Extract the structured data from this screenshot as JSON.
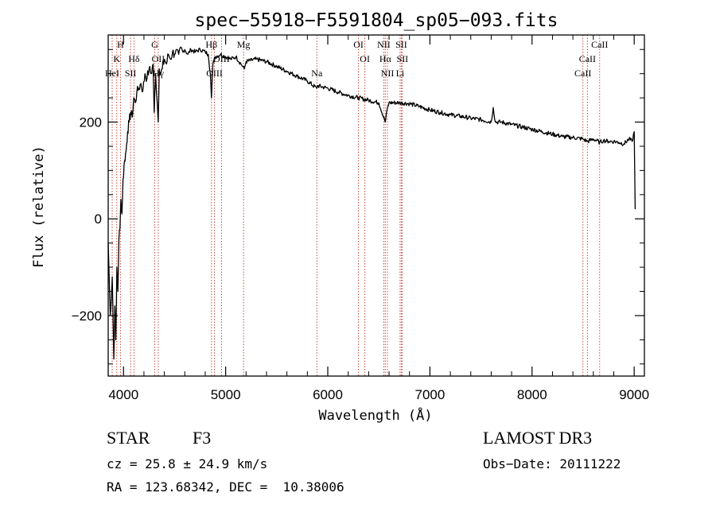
{
  "chart_data": {
    "type": "line",
    "title": "spec−55918−F5591804_sp05−093.fits",
    "xlabel": "Wavelength (Å)",
    "ylabel": "Flux (relative)",
    "xlim": [
      3850,
      9100
    ],
    "ylim": [
      -325,
      380
    ],
    "x_ticks": [
      4000,
      5000,
      6000,
      7000,
      8000,
      9000
    ],
    "x_tick_labels": [
      "4000",
      "5000",
      "6000",
      "7000",
      "8000",
      "9000"
    ],
    "y_ticks": [
      -200,
      0,
      200
    ],
    "y_tick_labels": [
      "−200",
      "0",
      "200"
    ],
    "grid": false,
    "series": [
      {
        "name": "flux",
        "x": [
          3850,
          3870,
          3890,
          3905,
          3915,
          3925,
          3935,
          3945,
          3955,
          3965,
          3975,
          3985,
          3995,
          4010,
          4025,
          4040,
          4055,
          4070,
          4085,
          4100,
          4115,
          4130,
          4150,
          4170,
          4190,
          4210,
          4230,
          4250,
          4270,
          4290,
          4300,
          4315,
          4330,
          4340,
          4350,
          4365,
          4380,
          4400,
          4420,
          4440,
          4460,
          4480,
          4500,
          4520,
          4540,
          4560,
          4580,
          4600,
          4630,
          4660,
          4700,
          4750,
          4800,
          4830,
          4850,
          4861,
          4875,
          4900,
          4950,
          5000,
          5050,
          5100,
          5150,
          5167,
          5183,
          5200,
          5300,
          5400,
          5500,
          5600,
          5700,
          5800,
          5890,
          5900,
          6000,
          6100,
          6200,
          6300,
          6400,
          6500,
          6563,
          6580,
          6600,
          6700,
          6800,
          6900,
          7000,
          7100,
          7200,
          7300,
          7400,
          7500,
          7600,
          7620,
          7640,
          7700,
          7800,
          7900,
          8000,
          8100,
          8200,
          8300,
          8400,
          8498,
          8542,
          8600,
          8662,
          8700,
          8750,
          8800,
          8850,
          8900,
          8950,
          8980,
          9000,
          9010
        ],
        "y": [
          -50,
          -200,
          -120,
          -290,
          -180,
          -250,
          -100,
          -150,
          -40,
          -20,
          40,
          10,
          80,
          120,
          140,
          180,
          200,
          220,
          210,
          250,
          240,
          260,
          270,
          280,
          265,
          300,
          290,
          310,
          300,
          320,
          220,
          300,
          240,
          200,
          310,
          300,
          310,
          330,
          320,
          340,
          330,
          345,
          340,
          350,
          340,
          355,
          345,
          350,
          340,
          350,
          345,
          350,
          345,
          340,
          300,
          250,
          320,
          335,
          340,
          335,
          330,
          335,
          320,
          315,
          310,
          325,
          330,
          325,
          315,
          305,
          295,
          285,
          270,
          275,
          270,
          262,
          255,
          250,
          245,
          240,
          200,
          225,
          240,
          240,
          238,
          232,
          225,
          220,
          215,
          212,
          208,
          205,
          200,
          230,
          200,
          200,
          195,
          190,
          185,
          180,
          175,
          170,
          168,
          165,
          160,
          165,
          158,
          162,
          160,
          160,
          158,
          155,
          165,
          160,
          180,
          20
        ]
      }
    ],
    "spectral_lines": [
      {
        "label": "H",
        "x": 3970,
        "row": 0
      },
      {
        "label": "K",
        "x": 3934,
        "row": 1
      },
      {
        "label": "Hδ",
        "x": 4102,
        "row": 1
      },
      {
        "label": "HeI",
        "x": 3889,
        "row": 2
      },
      {
        "label": "SII",
        "x": 4069,
        "row": 2
      },
      {
        "label": "G",
        "x": 4305,
        "row": 0
      },
      {
        "label": "OII",
        "x": 4340,
        "row": 1
      },
      {
        "label": "Hγ",
        "x": 4340,
        "row": 2
      },
      {
        "label": "Hβ",
        "x": 4861,
        "row": 0
      },
      {
        "label": "OIII",
        "x": 4959,
        "row": 1
      },
      {
        "label": "OIII",
        "x": 4890,
        "row": 2
      },
      {
        "label": "Mg",
        "x": 5175,
        "row": 0
      },
      {
        "label": "Na",
        "x": 5893,
        "row": 2
      },
      {
        "label": "OI",
        "x": 6300,
        "row": 0
      },
      {
        "label": "OI",
        "x": 6363,
        "row": 1
      },
      {
        "label": "NII",
        "x": 6548,
        "row": 0
      },
      {
        "label": "SII",
        "x": 6720,
        "row": 0
      },
      {
        "label": "Hα",
        "x": 6563,
        "row": 1
      },
      {
        "label": "SII",
        "x": 6731,
        "row": 1
      },
      {
        "label": "NII",
        "x": 6584,
        "row": 2
      },
      {
        "label": "Li",
        "x": 6708,
        "row": 2
      },
      {
        "label": "CaII",
        "x": 8662,
        "row": 0
      },
      {
        "label": "CaII",
        "x": 8542,
        "row": 1
      },
      {
        "label": "CaII",
        "x": 8498,
        "row": 2
      }
    ]
  },
  "info": {
    "object_type": "STAR",
    "subclass": "F3",
    "survey": "LAMOST DR3",
    "redshift": "cz = 25.8 ± 24.9 km/s",
    "obs_date": "Obs−Date: 20111222",
    "coords": "RA = 123.68342, DEC =  10.38006"
  },
  "colors": {
    "line_markers": "#c0392b",
    "spectrum": "#000000"
  }
}
